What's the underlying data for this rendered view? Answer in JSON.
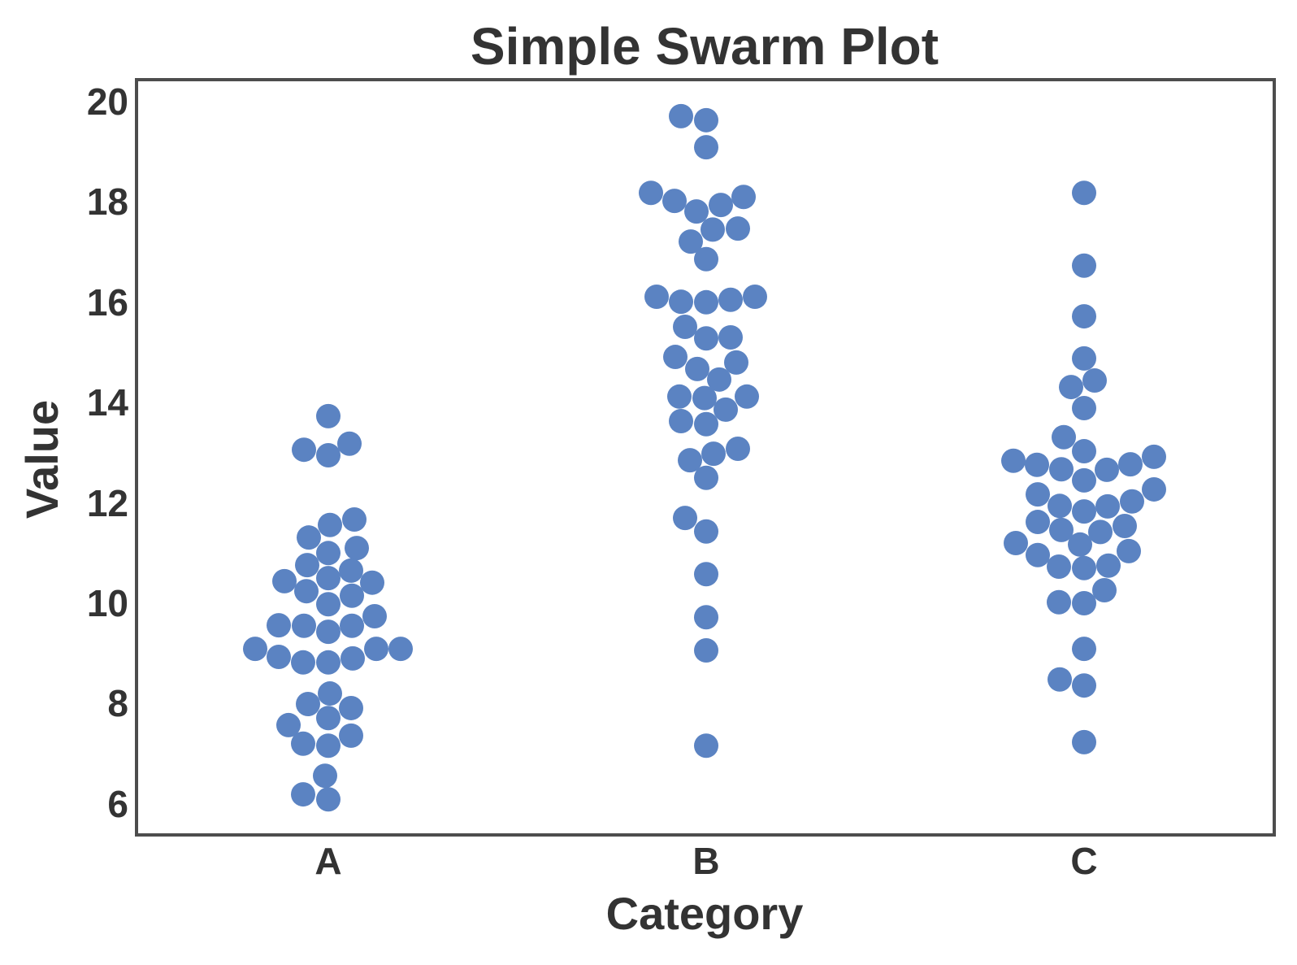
{
  "chart_data": {
    "type": "swarm",
    "title": "Simple Swarm Plot",
    "xlabel": "Category",
    "ylabel": "Value",
    "categories": [
      "A",
      "B",
      "C"
    ],
    "yticks": [
      6,
      8,
      10,
      12,
      14,
      16,
      18,
      20
    ],
    "ylim": [
      5.45,
      20.45
    ],
    "grid": false,
    "legend": null,
    "marker_color": "#5b83c2",
    "frame_color": "#4d4d4d",
    "text_color": "#333333",
    "series": [
      {
        "name": "A",
        "values": [
          13.73,
          13.06,
          12.95,
          13.18,
          11.67,
          11.56,
          11.31,
          11.1,
          11.0,
          10.76,
          10.65,
          10.5,
          10.44,
          10.41,
          10.24,
          10.15,
          9.98,
          9.74,
          9.56,
          9.55,
          9.55,
          9.43,
          9.09,
          9.09,
          9.09,
          8.93,
          8.9,
          8.82,
          8.82,
          8.2,
          7.99,
          7.91,
          7.71,
          7.57,
          7.36,
          7.2,
          7.16,
          6.56,
          6.19,
          6.09
        ],
        "offsets": [
          0,
          -30,
          0,
          26,
          32,
          2,
          -24,
          35,
          0,
          -26,
          28,
          0,
          -54,
          54,
          -27,
          29,
          0,
          57,
          -61,
          -30,
          29,
          0,
          -90,
          89,
          59,
          -61,
          30,
          -31,
          0,
          2,
          -25,
          28,
          0,
          -49,
          28,
          -31,
          0,
          -4,
          -31,
          0
        ]
      },
      {
        "name": "B",
        "values": [
          19.71,
          19.63,
          19.09,
          18.18,
          18.02,
          18.1,
          17.81,
          17.94,
          17.45,
          17.47,
          17.21,
          16.86,
          16.11,
          16.01,
          16.0,
          16.05,
          16.11,
          15.51,
          15.28,
          15.3,
          14.91,
          14.8,
          14.67,
          14.46,
          14.12,
          14.09,
          14.12,
          13.86,
          13.63,
          13.57,
          12.85,
          12.98,
          13.08,
          12.5,
          11.7,
          11.43,
          10.58,
          9.72,
          9.06,
          7.16
        ],
        "offsets": [
          -31,
          0,
          0,
          -68,
          -39,
          46,
          -12,
          18,
          8,
          39,
          -19,
          0,
          -61,
          -31,
          0,
          30,
          60,
          -26,
          0,
          30,
          -38,
          37,
          -11,
          16,
          -33,
          -2,
          50,
          24,
          -31,
          0,
          -20,
          9,
          39,
          0,
          -26,
          0,
          0,
          0,
          0,
          0
        ]
      },
      {
        "name": "C",
        "values": [
          18.18,
          16.73,
          15.72,
          14.88,
          14.31,
          14.44,
          13.89,
          13.31,
          13.03,
          12.84,
          12.76,
          12.67,
          12.45,
          12.66,
          12.77,
          12.92,
          12.27,
          12.17,
          11.94,
          11.83,
          11.93,
          12.03,
          11.62,
          11.46,
          11.42,
          11.54,
          11.2,
          11.17,
          10.96,
          11.04,
          10.73,
          10.7,
          10.75,
          10.26,
          10.02,
          10.0,
          9.09,
          8.48,
          8.36,
          7.23
        ],
        "offsets": [
          0,
          0,
          0,
          0,
          -16,
          13,
          0,
          -25,
          0,
          -87,
          -58,
          -28,
          0,
          28,
          57,
          86,
          86,
          -57,
          -30,
          0,
          29,
          59,
          -57,
          -28,
          20,
          50,
          -84,
          -5,
          -57,
          55,
          -31,
          0,
          30,
          25,
          -31,
          0,
          0,
          -30,
          0,
          0
        ]
      }
    ]
  }
}
